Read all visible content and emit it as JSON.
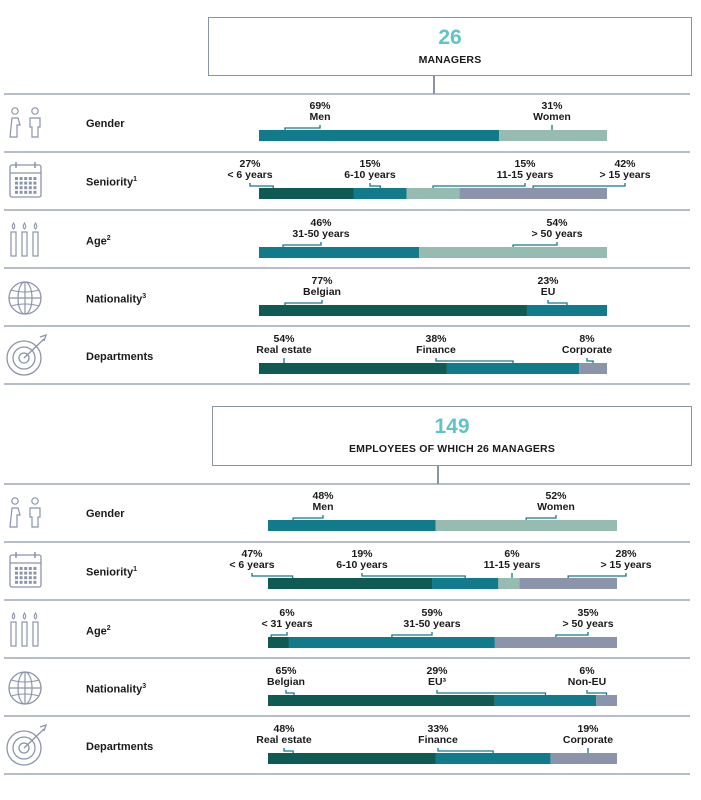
{
  "colors": {
    "dark_teal": "#0f5a52",
    "teal": "#117a8b",
    "light_sage": "#96bcb2",
    "grey_blue": "#8c94ab",
    "accent_number": "#5fc4c8",
    "rule": "#8a93a8"
  },
  "managers": {
    "count": "26",
    "title": "MANAGERS"
  },
  "employees": {
    "count": "149",
    "title": "EMPLOYEES OF WHICH 26 MANAGERS"
  },
  "rows": [
    {
      "label": "Gender",
      "sup": "",
      "icon": "people-icon"
    },
    {
      "label": "Seniority",
      "sup": "1",
      "icon": "calendar-icon"
    },
    {
      "label": "Age",
      "sup": "2",
      "icon": "candles-icon"
    },
    {
      "label": "Nationality",
      "sup": "3",
      "icon": "globe-icon"
    },
    {
      "label": "Departments",
      "sup": "",
      "icon": "target-icon"
    }
  ],
  "chart_data": [
    {
      "type": "bar",
      "group": "managers",
      "category": "Gender",
      "series": [
        {
          "name": "Men",
          "value": 69,
          "pct": "69%",
          "color": "#117a8b"
        },
        {
          "name": "Women",
          "value": 31,
          "pct": "31%",
          "color": "#96bcb2"
        }
      ]
    },
    {
      "type": "bar",
      "group": "managers",
      "category": "Seniority",
      "series": [
        {
          "name": "< 6 years",
          "value": 27,
          "pct": "27%",
          "color": "#0f5a52"
        },
        {
          "name": "6-10 years",
          "value": 15,
          "pct": "15%",
          "color": "#117a8b"
        },
        {
          "name": "11-15 years",
          "value": 15,
          "pct": "15%",
          "color": "#96bcb2"
        },
        {
          "name": "> 15 years",
          "value": 42,
          "pct": "42%",
          "color": "#8c94ab"
        }
      ]
    },
    {
      "type": "bar",
      "group": "managers",
      "category": "Age",
      "series": [
        {
          "name": "31-50 years",
          "value": 46,
          "pct": "46%",
          "color": "#117a8b"
        },
        {
          "name": "> 50 years",
          "value": 54,
          "pct": "54%",
          "color": "#96bcb2"
        }
      ]
    },
    {
      "type": "bar",
      "group": "managers",
      "category": "Nationality",
      "series": [
        {
          "name": "Belgian",
          "value": 77,
          "pct": "77%",
          "color": "#0f5a52"
        },
        {
          "name": "EU",
          "value": 23,
          "pct": "23%",
          "color": "#117a8b"
        }
      ]
    },
    {
      "type": "bar",
      "group": "managers",
      "category": "Departments",
      "series": [
        {
          "name": "Real estate",
          "value": 54,
          "pct": "54%",
          "color": "#0f5a52"
        },
        {
          "name": "Finance",
          "value": 38,
          "pct": "38%",
          "color": "#117a8b"
        },
        {
          "name": "Corporate",
          "value": 8,
          "pct": "8%",
          "color": "#8c94ab"
        }
      ]
    },
    {
      "type": "bar",
      "group": "employees",
      "category": "Gender",
      "series": [
        {
          "name": "Men",
          "value": 48,
          "pct": "48%",
          "color": "#117a8b"
        },
        {
          "name": "Women",
          "value": 52,
          "pct": "52%",
          "color": "#96bcb2"
        }
      ]
    },
    {
      "type": "bar",
      "group": "employees",
      "category": "Seniority",
      "series": [
        {
          "name": "< 6 years",
          "value": 47,
          "pct": "47%",
          "color": "#0f5a52"
        },
        {
          "name": "6-10 years",
          "value": 19,
          "pct": "19%",
          "color": "#117a8b"
        },
        {
          "name": "11-15 years",
          "value": 6,
          "pct": "6%",
          "color": "#96bcb2"
        },
        {
          "name": "> 15 years",
          "value": 28,
          "pct": "28%",
          "color": "#8c94ab"
        }
      ]
    },
    {
      "type": "bar",
      "group": "employees",
      "category": "Age",
      "series": [
        {
          "name": "< 31 years",
          "value": 6,
          "pct": "6%",
          "color": "#0f5a52"
        },
        {
          "name": "31-50 years",
          "value": 59,
          "pct": "59%",
          "color": "#117a8b"
        },
        {
          "name": "> 50 years",
          "value": 35,
          "pct": "35%",
          "color": "#8c94ab"
        }
      ]
    },
    {
      "type": "bar",
      "group": "employees",
      "category": "Nationality",
      "series": [
        {
          "name": "Belgian",
          "value": 65,
          "pct": "65%",
          "color": "#0f5a52"
        },
        {
          "name": "EU³",
          "value": 29,
          "pct": "29%",
          "color": "#117a8b"
        },
        {
          "name": "Non-EU",
          "value": 6,
          "pct": "6%",
          "color": "#8c94ab"
        }
      ]
    },
    {
      "type": "bar",
      "group": "employees",
      "category": "Departments",
      "series": [
        {
          "name": "Real estate",
          "value": 48,
          "pct": "48%",
          "color": "#0f5a52"
        },
        {
          "name": "Finance",
          "value": 33,
          "pct": "33%",
          "color": "#117a8b"
        },
        {
          "name": "Corporate",
          "value": 19,
          "pct": "19%",
          "color": "#8c94ab"
        }
      ]
    }
  ]
}
